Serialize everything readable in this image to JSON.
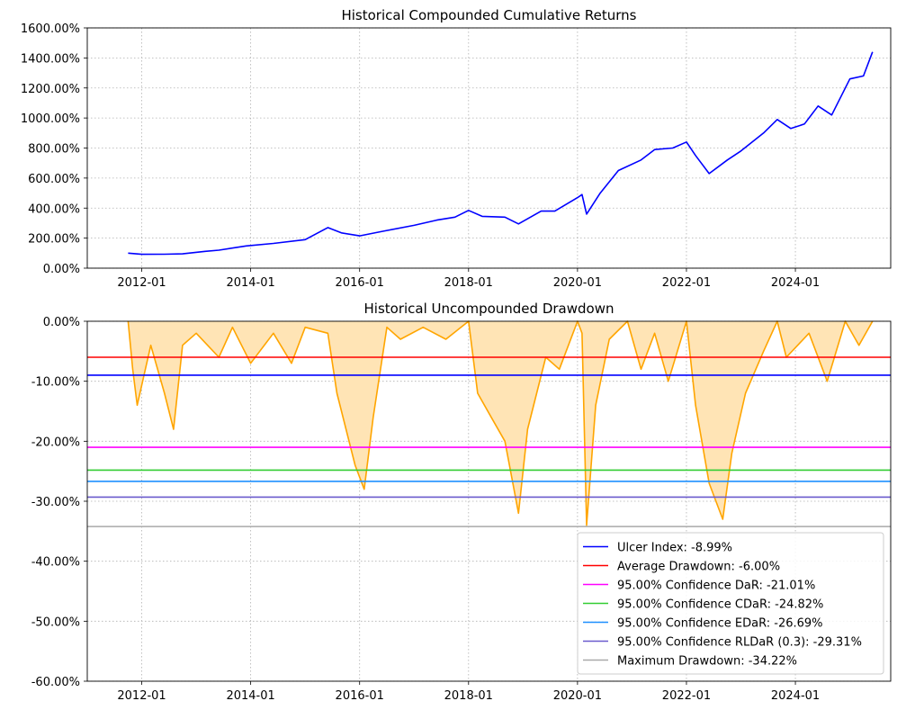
{
  "chart_data": [
    {
      "type": "line",
      "title": "Historical Compounded Cumulative Returns",
      "xlabel": "",
      "ylabel": "",
      "x_ticks": [
        "2012-01",
        "2014-01",
        "2016-01",
        "2018-01",
        "2020-01",
        "2022-01",
        "2024-01"
      ],
      "y_ticks": [
        "0.00%",
        "200.00%",
        "400.00%",
        "600.00%",
        "800.00%",
        "1000.00%",
        "1200.00%",
        "1400.00%",
        "1600.00%"
      ],
      "ylim": [
        0,
        1600
      ],
      "x_range": [
        "2011-01",
        "2025-10"
      ],
      "grid": true,
      "series": [
        {
          "name": "Cumulative Return",
          "color": "#0000ff",
          "points": [
            [
              "2011-10",
              100
            ],
            [
              "2012-01",
              92
            ],
            [
              "2012-06",
              93
            ],
            [
              "2012-10",
              95
            ],
            [
              "2013-03",
              112
            ],
            [
              "2013-06",
              120
            ],
            [
              "2013-12",
              148
            ],
            [
              "2014-06",
              165
            ],
            [
              "2015-01",
              190
            ],
            [
              "2015-06",
              270
            ],
            [
              "2015-09",
              235
            ],
            [
              "2016-01",
              215
            ],
            [
              "2016-06",
              245
            ],
            [
              "2017-01",
              285
            ],
            [
              "2017-06",
              320
            ],
            [
              "2017-10",
              340
            ],
            [
              "2018-01",
              385
            ],
            [
              "2018-04",
              345
            ],
            [
              "2018-09",
              340
            ],
            [
              "2018-12",
              295
            ],
            [
              "2019-05",
              380
            ],
            [
              "2019-08",
              380
            ],
            [
              "2020-01",
              470
            ],
            [
              "2020-02",
              490
            ],
            [
              "2020-03",
              360
            ],
            [
              "2020-06",
              500
            ],
            [
              "2020-10",
              650
            ],
            [
              "2021-03",
              720
            ],
            [
              "2021-06",
              790
            ],
            [
              "2021-10",
              800
            ],
            [
              "2022-01",
              840
            ],
            [
              "2022-03",
              750
            ],
            [
              "2022-06",
              630
            ],
            [
              "2022-10",
              720
            ],
            [
              "2023-01",
              780
            ],
            [
              "2023-06",
              900
            ],
            [
              "2023-09",
              990
            ],
            [
              "2023-12",
              930
            ],
            [
              "2024-03",
              960
            ],
            [
              "2024-06",
              1080
            ],
            [
              "2024-09",
              1020
            ],
            [
              "2025-01",
              1260
            ],
            [
              "2025-04",
              1280
            ],
            [
              "2025-06",
              1440
            ]
          ]
        }
      ]
    },
    {
      "type": "area",
      "title": "Historical Uncompounded Drawdown",
      "xlabel": "",
      "ylabel": "",
      "x_ticks": [
        "2012-01",
        "2014-01",
        "2016-01",
        "2018-01",
        "2020-01",
        "2022-01",
        "2024-01"
      ],
      "y_ticks": [
        "0.00%",
        "-10.00%",
        "-20.00%",
        "-30.00%",
        "-40.00%",
        "-50.00%",
        "-60.00%"
      ],
      "ylim": [
        -60,
        0
      ],
      "x_range": [
        "2011-01",
        "2025-10"
      ],
      "grid": true,
      "legend_position": "lower-right",
      "series": [
        {
          "name": "Drawdown",
          "color": "#ffa500",
          "fill": "#ffe4b5",
          "points": [
            [
              "2011-10",
              0
            ],
            [
              "2011-11",
              -8
            ],
            [
              "2011-12",
              -14
            ],
            [
              "2012-03",
              -4
            ],
            [
              "2012-06",
              -12
            ],
            [
              "2012-08",
              -18
            ],
            [
              "2012-10",
              -4
            ],
            [
              "2013-01",
              -2
            ],
            [
              "2013-06",
              -6
            ],
            [
              "2013-09",
              -1
            ],
            [
              "2014-01",
              -7
            ],
            [
              "2014-06",
              -2
            ],
            [
              "2014-10",
              -7
            ],
            [
              "2015-01",
              -1
            ],
            [
              "2015-06",
              -2
            ],
            [
              "2015-08",
              -12
            ],
            [
              "2015-10",
              -18
            ],
            [
              "2015-12",
              -24
            ],
            [
              "2016-02",
              -28
            ],
            [
              "2016-04",
              -16
            ],
            [
              "2016-07",
              -1
            ],
            [
              "2016-10",
              -3
            ],
            [
              "2017-03",
              -1
            ],
            [
              "2017-08",
              -3
            ],
            [
              "2018-01",
              0
            ],
            [
              "2018-03",
              -12
            ],
            [
              "2018-06",
              -16
            ],
            [
              "2018-09",
              -20
            ],
            [
              "2018-12",
              -32
            ],
            [
              "2019-02",
              -18
            ],
            [
              "2019-06",
              -6
            ],
            [
              "2019-09",
              -8
            ],
            [
              "2020-01",
              0
            ],
            [
              "2020-02",
              -2
            ],
            [
              "2020-03",
              -34
            ],
            [
              "2020-05",
              -14
            ],
            [
              "2020-08",
              -3
            ],
            [
              "2020-12",
              0
            ],
            [
              "2021-03",
              -8
            ],
            [
              "2021-06",
              -2
            ],
            [
              "2021-09",
              -10
            ],
            [
              "2022-01",
              0
            ],
            [
              "2022-03",
              -14
            ],
            [
              "2022-06",
              -27
            ],
            [
              "2022-09",
              -33
            ],
            [
              "2022-11",
              -22
            ],
            [
              "2023-02",
              -12
            ],
            [
              "2023-06",
              -5
            ],
            [
              "2023-09",
              0
            ],
            [
              "2023-11",
              -6
            ],
            [
              "2024-04",
              -2
            ],
            [
              "2024-08",
              -10
            ],
            [
              "2024-12",
              0
            ],
            [
              "2025-03",
              -4
            ],
            [
              "2025-06",
              0
            ]
          ]
        }
      ],
      "reference_lines": [
        {
          "label": "Ulcer Index: -8.99%",
          "value": -8.99,
          "color": "#0000ff"
        },
        {
          "label": "Average Drawdown: -6.00%",
          "value": -6.0,
          "color": "#ff0000"
        },
        {
          "label": "95.00% Confidence DaR: -21.01%",
          "value": -21.01,
          "color": "#ff00ff"
        },
        {
          "label": "95.00% Confidence CDaR: -24.82%",
          "value": -24.82,
          "color": "#32cd32"
        },
        {
          "label": "95.00% Confidence EDaR: -26.69%",
          "value": -26.69,
          "color": "#1e90ff"
        },
        {
          "label": "95.00% Confidence RLDaR (0.3): -29.31%",
          "value": -29.31,
          "color": "#6a5acd"
        },
        {
          "label": "Maximum Drawdown: -34.22%",
          "value": -34.22,
          "color": "#a9a9a9"
        }
      ]
    }
  ]
}
